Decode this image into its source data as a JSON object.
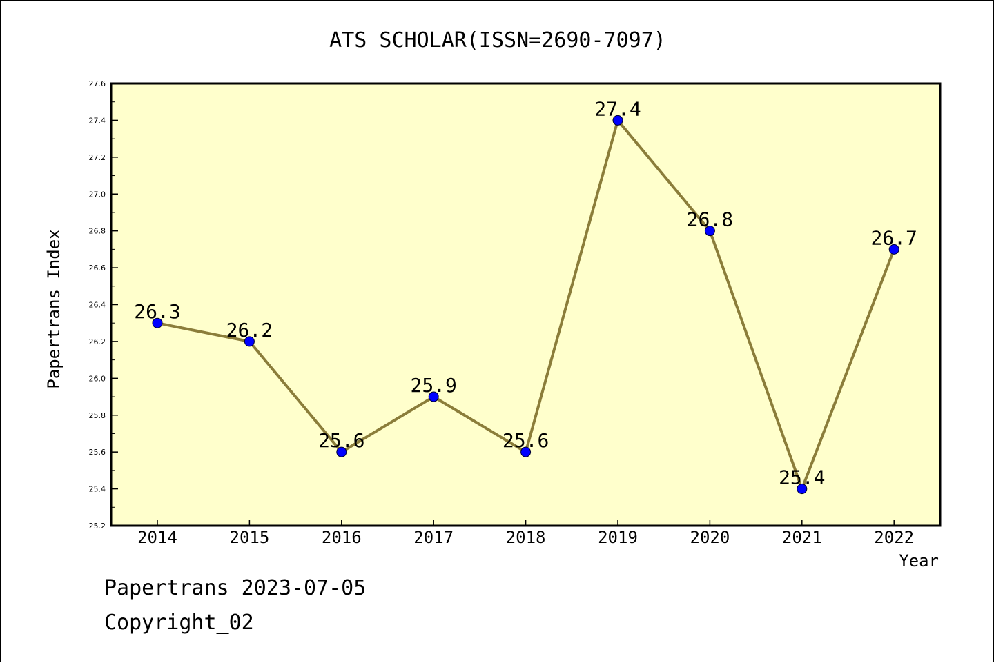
{
  "chart_data": {
    "type": "line",
    "title": "ATS SCHOLAR(ISSN=2690-7097)",
    "xlabel": "Year",
    "ylabel": "Papertrans Index",
    "categories": [
      "2014",
      "2015",
      "2016",
      "2017",
      "2018",
      "2019",
      "2020",
      "2021",
      "2022"
    ],
    "series": [
      {
        "values": [
          26.3,
          26.2,
          25.6,
          25.9,
          25.6,
          27.4,
          26.8,
          25.4,
          26.7
        ]
      }
    ],
    "data_labels": [
      "26.3",
      "26.2",
      "25.6",
      "25.9",
      "25.6",
      "27.4",
      "26.8",
      "25.4",
      "26.7"
    ],
    "ylim": [
      25.2,
      27.6
    ],
    "yticks": [
      "25.2",
      "25.4",
      "25.6",
      "25.8",
      "26.0",
      "26.2",
      "26.4",
      "26.6",
      "26.8",
      "27.0",
      "27.2",
      "27.4",
      "27.6"
    ],
    "grid": false,
    "legend": "none",
    "colors": {
      "plot_background": "#ffffcc",
      "line": "#8b7d3a",
      "marker": "#0000ff"
    }
  },
  "footer": {
    "date_text": "Papertrans 2023-07-05",
    "copyright_text": "Copyright_02"
  }
}
